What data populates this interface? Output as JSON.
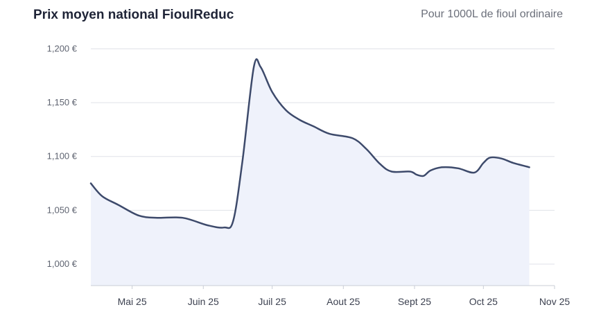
{
  "header": {
    "title": "Prix moyen national FioulReduc",
    "subtitle": "Pour 1000L de fioul ordinaire"
  },
  "colors": {
    "line": "#3d4a6b",
    "fill": "#eff2fb",
    "grid": "#dfe2e8",
    "axis": "#c9cdd6"
  },
  "chart_data": {
    "type": "area",
    "title": "Prix moyen national FioulReduc",
    "subtitle": "Pour 1000L de fioul ordinaire",
    "xlabel": "",
    "ylabel": "",
    "x_range": [
      "2025-04-13",
      "2025-11-01"
    ],
    "ylim": [
      980,
      1210
    ],
    "y_ticks": [
      1000,
      1050,
      1100,
      1150,
      1200
    ],
    "y_tick_labels": [
      "1,000 €",
      "1,050 €",
      "1,100 €",
      "1,150 €",
      "1,200 €"
    ],
    "x_ticks": [
      "2025-05-01",
      "2025-06-01",
      "2025-07-01",
      "2025-08-01",
      "2025-09-01",
      "2025-10-01",
      "2025-11-01"
    ],
    "x_tick_labels": [
      "Mai 25",
      "Juin 25",
      "Juil 25",
      "Aout 25",
      "Sept 25",
      "Oct 25",
      "Nov 25"
    ],
    "grid": true,
    "series": [
      {
        "points": [
          [
            "2025-04-13",
            1075
          ],
          [
            "2025-04-18",
            1063
          ],
          [
            "2025-04-25",
            1055
          ],
          [
            "2025-05-04",
            1045
          ],
          [
            "2025-05-12",
            1043
          ],
          [
            "2025-05-23",
            1043
          ],
          [
            "2025-06-03",
            1036
          ],
          [
            "2025-06-10",
            1034
          ],
          [
            "2025-06-14",
            1040
          ],
          [
            "2025-06-18",
            1095
          ],
          [
            "2025-06-23",
            1183
          ],
          [
            "2025-06-26",
            1183
          ],
          [
            "2025-07-01",
            1160
          ],
          [
            "2025-07-07",
            1143
          ],
          [
            "2025-07-13",
            1134
          ],
          [
            "2025-07-19",
            1128
          ],
          [
            "2025-07-26",
            1121
          ],
          [
            "2025-08-05",
            1117
          ],
          [
            "2025-08-11",
            1107
          ],
          [
            "2025-08-17",
            1093
          ],
          [
            "2025-08-22",
            1086
          ],
          [
            "2025-08-30",
            1086
          ],
          [
            "2025-09-02",
            1083
          ],
          [
            "2025-09-05",
            1082
          ],
          [
            "2025-09-08",
            1087
          ],
          [
            "2025-09-13",
            1090
          ],
          [
            "2025-09-20",
            1089
          ],
          [
            "2025-09-27",
            1085
          ],
          [
            "2025-10-01",
            1094
          ],
          [
            "2025-10-04",
            1099
          ],
          [
            "2025-10-09",
            1098
          ],
          [
            "2025-10-14",
            1094
          ],
          [
            "2025-10-21",
            1090
          ]
        ]
      }
    ]
  }
}
